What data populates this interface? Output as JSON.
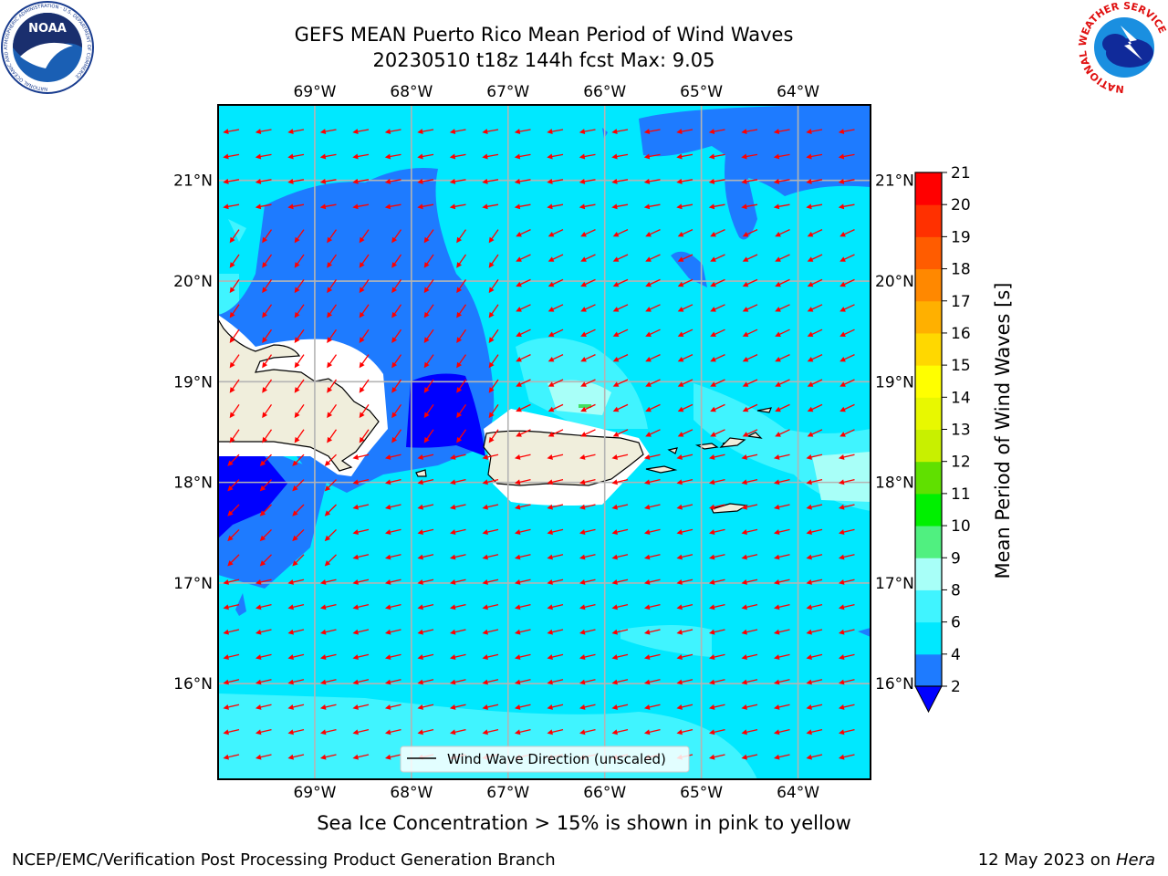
{
  "title": {
    "line1": "GEFS MEAN Puerto Rico Mean Period of Wind Waves",
    "line2": "20230510 t18z 144h fcst   Max: 9.05"
  },
  "map": {
    "lon_labels": [
      "69°W",
      "68°W",
      "67°W",
      "66°W",
      "65°W",
      "64°W"
    ],
    "lat_labels": [
      "21°N",
      "20°N",
      "19°N",
      "18°N",
      "17°N",
      "16°N"
    ],
    "lon_values": [
      -69,
      -68,
      -67,
      -66,
      -65,
      -64
    ],
    "lat_values": [
      21,
      20,
      19,
      18,
      17,
      16
    ],
    "lon_range": [
      -70,
      -63.25
    ],
    "lat_range": [
      15.05,
      21.75
    ],
    "grid": true,
    "land_color": "#f0eedc",
    "arrow_color": "#ff0000",
    "arrow_direction": "from east-northeast"
  },
  "legend": {
    "label": "Wind Wave Direction (unscaled)"
  },
  "colorbar": {
    "label": "Mean Period of Wind Waves [s]",
    "ticks": [
      "2",
      "4",
      "6",
      "8",
      "9",
      "10",
      "11",
      "12",
      "13",
      "14",
      "15",
      "16",
      "17",
      "18",
      "19",
      "20",
      "21"
    ],
    "colors": [
      "#1e7bff",
      "#00e8ff",
      "#40f4ff",
      "#a8fff8",
      "#50f080",
      "#00f000",
      "#60e000",
      "#c8f000",
      "#e8f800",
      "#ffff00",
      "#ffd800",
      "#ffb000",
      "#ff8800",
      "#ff5c00",
      "#ff3000",
      "#ff0000"
    ],
    "under_color": "#0000ff",
    "extend": "min"
  },
  "bottom_note": "Sea Ice Concentration > 15% is shown in pink to yellow",
  "footer": {
    "left": "NCEP/EMC/Verification Post Processing Product Generation Branch",
    "right_date": "12 May 2023 on ",
    "right_host": "Hera"
  },
  "logos": {
    "noaa": {
      "text": "NOAA",
      "ring": "NATIONAL OCEANIC AND ATMOSPHERIC ADMINISTRATION · U.S. DEPARTMENT OF COMMERCE"
    },
    "nws": {
      "ring": "NATIONAL WEATHER SERVICE"
    }
  }
}
